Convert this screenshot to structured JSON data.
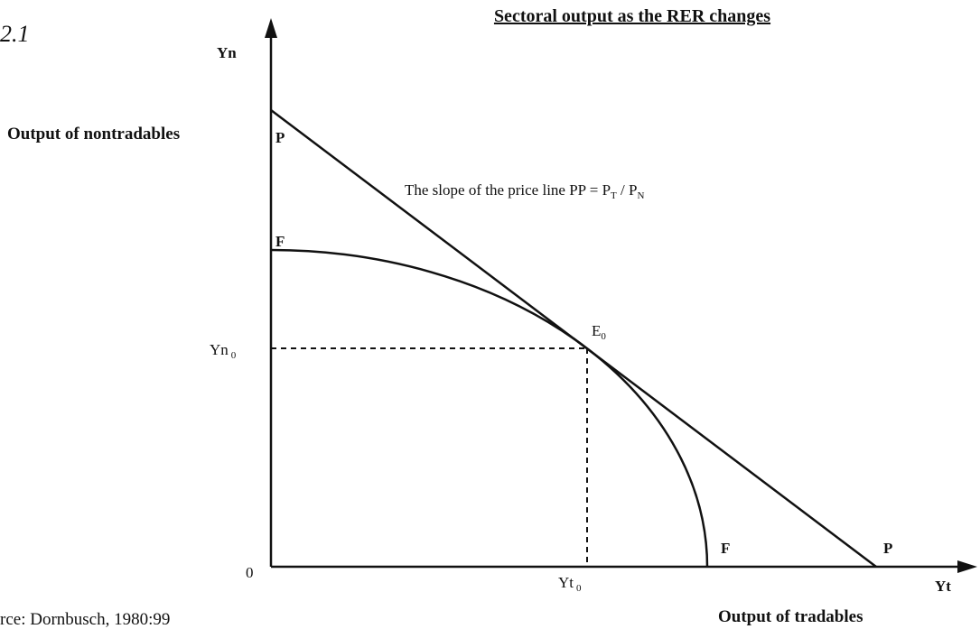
{
  "figure_number": "2.1",
  "title": "Sectoral output as the RER changes",
  "y_axis": {
    "label": "Yn",
    "description": "Output of nontradables",
    "origin": "0",
    "marker": {
      "text": "Yn",
      "sub": "0"
    }
  },
  "x_axis": {
    "label": "Yt",
    "description": "Output of tradables",
    "marker": {
      "text": "Yt",
      "sub": "0"
    }
  },
  "price_line": {
    "start_label": "P",
    "end_label": "P",
    "annotation": {
      "part1": "The slope of the price line PP = P",
      "sub1": "T",
      "part2": " / P",
      "sub2": "N"
    }
  },
  "frontier": {
    "start_label": "F",
    "end_label": "F"
  },
  "equilibrium": {
    "text": "E",
    "sub": "0"
  },
  "source": "rce: Dornbusch, 1980:99"
}
